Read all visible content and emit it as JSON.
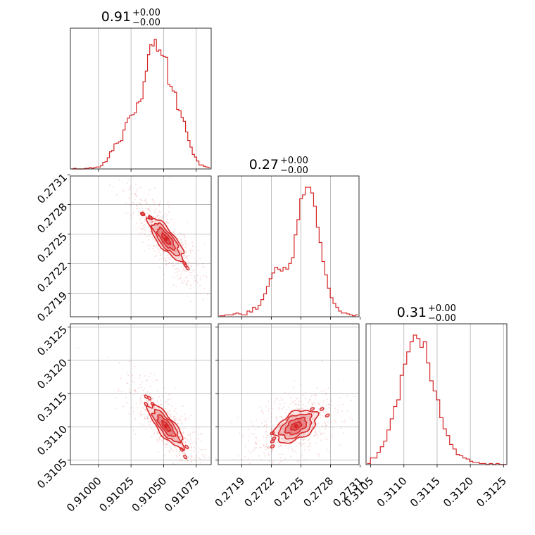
{
  "colors": {
    "series": "#d62728",
    "grid": "#b0b0b0",
    "frame": "#000000"
  },
  "chart_data": {
    "type": "corner",
    "parameters": [
      {
        "median": "0.91",
        "plus": "+0.00",
        "minus": "−0.00"
      },
      {
        "median": "0.27",
        "plus": "+0.00",
        "minus": "−0.00"
      },
      {
        "median": "0.31",
        "plus": "+0.00",
        "minus": "−0.00"
      }
    ],
    "axes": {
      "x0": {
        "range": [
          0.909785,
          0.910865
        ],
        "ticks": [
          0.91,
          0.91025,
          0.9105,
          0.91075
        ],
        "labels": [
          "0.91000",
          "0.91025",
          "0.91050",
          "0.91075"
        ]
      },
      "x1": {
        "range": [
          0.27166,
          0.27309
        ],
        "ticks": [
          0.2719,
          0.2722,
          0.2725,
          0.2728,
          0.2731
        ],
        "labels": [
          "0.2719",
          "0.2722",
          "0.2725",
          "0.2728",
          "0.2731"
        ]
      },
      "x2": {
        "range": [
          0.31043,
          0.31255
        ],
        "ticks": [
          0.3105,
          0.311,
          0.3115,
          0.312,
          0.3125
        ],
        "labels": [
          "0.3105",
          "0.3110",
          "0.3115",
          "0.3120",
          "0.3125"
        ]
      },
      "y1": {
        "range": [
          0.27166,
          0.27309
        ],
        "ticks": [
          0.2719,
          0.2722,
          0.2725,
          0.2728,
          0.2731
        ],
        "labels": [
          "0.2719",
          "0.2722",
          "0.2725",
          "0.2728",
          "0.2731"
        ]
      },
      "y2": {
        "range": [
          0.31043,
          0.31255
        ],
        "ticks": [
          0.3105,
          0.311,
          0.3115,
          0.312,
          0.3125
        ],
        "labels": [
          "0.3105",
          "0.3110",
          "0.3115",
          "0.3120",
          "0.3125"
        ]
      }
    },
    "histograms": [
      {
        "param": 0,
        "counts": [
          0,
          1,
          0,
          0,
          0,
          0,
          1,
          1,
          2,
          1,
          2,
          3,
          3,
          5,
          10,
          11,
          17,
          26,
          28,
          38,
          39,
          41,
          43,
          59,
          70,
          77,
          81,
          82,
          85,
          100,
          102,
          106,
          132,
          148,
          173,
          188,
          186,
          196,
          178,
          180,
          172,
          170,
          169,
          128,
          125,
          118,
          116,
          90,
          88,
          78,
          72,
          56,
          43,
          33,
          22,
          18,
          12,
          6,
          6,
          4,
          3,
          2
        ]
      },
      {
        "param": 1,
        "counts": [
          1,
          1,
          2,
          2,
          2,
          3,
          4,
          3,
          2,
          2,
          6,
          5,
          10,
          8,
          12,
          18,
          24,
          32,
          40,
          46,
          52,
          50,
          48,
          52,
          50,
          56,
          62,
          86,
          102,
          124,
          128,
          136,
          136,
          130,
          116,
          94,
          78,
          58,
          44,
          30,
          20,
          14,
          10,
          6,
          4,
          4,
          3,
          2,
          1,
          2
        ]
      },
      {
        "param": 2,
        "counts": [
          1,
          6,
          6,
          11,
          16,
          21,
          31,
          41,
          52,
          58,
          80,
          90,
          101,
          110,
          116,
          113,
          105,
          110,
          91,
          75,
          66,
          58,
          42,
          32,
          26,
          18,
          14,
          9,
          8,
          6,
          5,
          3,
          2,
          2,
          1,
          1,
          0,
          1,
          0,
          1,
          0,
          0
        ]
      }
    ],
    "pairs": [
      {
        "x": 0,
        "y": 1,
        "correlation": "negative",
        "center": [
          0.910519,
          0.27245
        ],
        "contour_levels": [
          0.5,
          1.0,
          1.5,
          2.0
        ]
      },
      {
        "x": 0,
        "y": 2,
        "correlation": "negative",
        "center": [
          0.910519,
          0.31101
        ],
        "contour_levels": [
          0.5,
          1.0,
          1.5,
          2.0
        ]
      },
      {
        "x": 1,
        "y": 2,
        "correlation": "positive",
        "center": [
          0.27245,
          0.31101
        ],
        "contour_levels": [
          0.5,
          1.0,
          1.5,
          2.0
        ]
      }
    ]
  }
}
